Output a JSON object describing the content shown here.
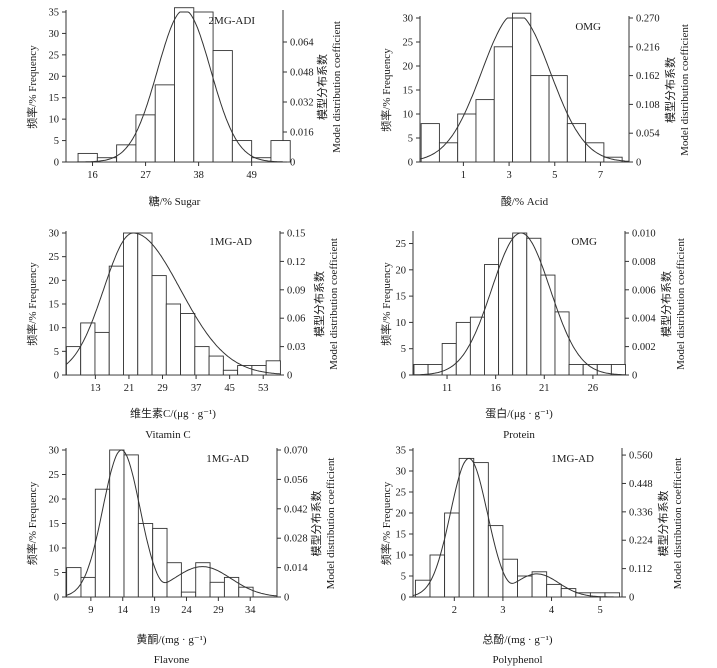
{
  "chart_data": [
    {
      "type": "bar",
      "subtype": "histogram-with-fitted-curve",
      "annotation": "2MG-ADI",
      "xlabel": "糖/%  Sugar",
      "ylabel": "频率/%  Frequency",
      "y2label_cn": "模型分布系数",
      "y2label_en": "Model distribution coefficient",
      "xlim": [
        10.5,
        55.5
      ],
      "ylim": [
        0,
        35
      ],
      "y2lim": [
        0,
        0.08
      ],
      "xticks": [
        16,
        27,
        38,
        49
      ],
      "yticks": [
        0,
        5,
        10,
        15,
        20,
        25,
        30,
        35
      ],
      "y2ticks": [
        "0",
        "0.016",
        "0.032",
        "0.048",
        "0.064"
      ],
      "bin_width": 4,
      "bin_starts": [
        13,
        17,
        21,
        25,
        29,
        33,
        37,
        41,
        45,
        49,
        53
      ],
      "values": [
        2,
        1,
        4,
        11,
        18,
        36,
        35,
        26,
        5,
        1,
        5
      ],
      "curve": {
        "peak": 35.5,
        "mean": 35,
        "sd": 5.5
      },
      "grid": false,
      "legend": "none"
    },
    {
      "type": "bar",
      "subtype": "histogram-with-fitted-curve",
      "annotation": "OMG",
      "xlabel": "酸/%  Acid",
      "ylabel": "频率/%  Frequency",
      "y2label_cn": "模型分布系数",
      "y2label_en": "Model distribution coefficient",
      "xlim": [
        -0.9,
        8.25
      ],
      "ylim": [
        0,
        30
      ],
      "y2lim": [
        0,
        0.27
      ],
      "xticks": [
        1,
        3,
        5,
        7
      ],
      "yticks": [
        0,
        5,
        10,
        15,
        20,
        25,
        30
      ],
      "y2ticks": [
        "0",
        "0.054",
        "0.108",
        "0.162",
        "0.216",
        "0.270"
      ],
      "bin_width": 0.8,
      "bin_starts": [
        -0.85,
        -0.05,
        0.75,
        1.55,
        2.35,
        3.15,
        3.95,
        4.75,
        5.55,
        6.35,
        7.15
      ],
      "values": [
        8,
        4,
        10,
        13,
        24,
        31,
        18,
        18,
        8,
        4,
        1
      ],
      "curve": {
        "peak": 31,
        "mean": 3.3,
        "sd": 1.5
      },
      "grid": false,
      "legend": "none"
    },
    {
      "type": "bar",
      "subtype": "histogram-with-fitted-curve",
      "annotation": "1MG-AD",
      "xlabel": "维生素C/(μg · g⁻¹)",
      "xlabel_en": "Vitamin C",
      "ylabel": "频率/%  Frequency",
      "y2label_cn": "模型分布系数",
      "y2label_en": "Model distribution coefficient",
      "xlim": [
        6,
        57
      ],
      "ylim": [
        0,
        30
      ],
      "y2lim": [
        0,
        0.15
      ],
      "xticks": [
        13,
        21,
        29,
        37,
        45,
        53
      ],
      "yticks": [
        0,
        5,
        10,
        15,
        20,
        25,
        30
      ],
      "y2ticks": [
        "0",
        "0.03",
        "0.06",
        "0.09",
        "0.12",
        "0.15"
      ],
      "bin_width": 3.4,
      "bin_starts": [
        6.1,
        9.5,
        12.9,
        16.3,
        19.7,
        23.1,
        26.5,
        29.9,
        33.3,
        36.7,
        40.1,
        43.5,
        46.9,
        50.3,
        53.7
      ],
      "values": [
        6,
        11,
        9,
        23,
        30,
        30,
        21,
        15,
        13,
        6,
        4,
        1,
        2,
        2,
        3
      ],
      "curve": {
        "peak": 30,
        "mean": 22,
        "sd": 7,
        "skew": 1.6
      },
      "grid": false,
      "legend": "none"
    },
    {
      "type": "bar",
      "subtype": "histogram-with-fitted-curve",
      "annotation": "OMG",
      "xlabel": "蛋白/(μg · g⁻¹)",
      "xlabel_en": "Protein",
      "ylabel": "频率/%  Frequency",
      "y2label_cn": "模型分布系数",
      "y2label_en": "Model distribution coefficient",
      "xlim": [
        7.5,
        29.3
      ],
      "ylim": [
        0,
        27
      ],
      "y2lim": [
        0,
        0.01
      ],
      "xticks": [
        11,
        16,
        21,
        26
      ],
      "yticks": [
        0,
        5,
        10,
        15,
        20,
        25
      ],
      "y2ticks": [
        "0",
        "0.002",
        "0.004",
        "0.006",
        "0.008",
        "0.010"
      ],
      "bin_width": 1.45,
      "bin_starts": [
        7.6,
        9.05,
        10.5,
        11.95,
        13.4,
        14.85,
        16.3,
        17.75,
        19.2,
        20.65,
        22.1,
        23.55,
        25.0,
        26.45,
        27.9
      ],
      "values": [
        2,
        2,
        6,
        10,
        11,
        21,
        26,
        27,
        26,
        19,
        12,
        2,
        2,
        2,
        2
      ],
      "curve": {
        "peak": 27,
        "mean": 18.6,
        "sd": 3.0
      },
      "grid": false,
      "legend": "none"
    },
    {
      "type": "bar",
      "subtype": "histogram-with-fitted-curve",
      "annotation": "1MG-AD",
      "xlabel": "黄酮/(mg · g⁻¹)",
      "xlabel_en": "Flavone",
      "ylabel": "频率/%  Frequency",
      "y2label_cn": "模型分布系数",
      "y2label_en": "Model distribution coefficient",
      "xlim": [
        5.1,
        38.2
      ],
      "ylim": [
        0,
        30
      ],
      "y2lim": [
        0,
        0.07
      ],
      "xticks": [
        9,
        14,
        19,
        24,
        29,
        34
      ],
      "yticks": [
        0,
        5,
        10,
        15,
        20,
        25,
        30
      ],
      "y2ticks": [
        "0",
        "0.014",
        "0.028",
        "0.042",
        "0.056",
        "0.070"
      ],
      "bin_width": 2.25,
      "bin_starts": [
        5.2,
        7.45,
        9.7,
        11.95,
        14.2,
        16.45,
        18.7,
        20.95,
        23.2,
        25.45,
        27.7,
        29.95,
        32.2,
        34.45,
        36.7
      ],
      "values": [
        6,
        4,
        22,
        30,
        29,
        15,
        14,
        7,
        1,
        7,
        3,
        4,
        2,
        0,
        0
      ],
      "curve": {
        "peak": 30,
        "mean": 13.8,
        "sd": 2.9,
        "secondary_peak": 6.2,
        "secondary_mean": 26.5,
        "secondary_sd": 4.5
      },
      "grid": false,
      "legend": "none"
    },
    {
      "type": "bar",
      "subtype": "histogram-with-fitted-curve",
      "annotation": "1MG-AD",
      "xlabel": "总酚/(mg · g⁻¹)",
      "xlabel_en": "Polyphenol",
      "ylabel": "频率/%  Frequency",
      "y2label_cn": "模型分布系数",
      "y2label_en": "Model distribution coefficient",
      "xlim": [
        1.15,
        5.45
      ],
      "ylim": [
        0,
        35
      ],
      "y2lim": [
        0,
        0.58
      ],
      "xticks": [
        2,
        3,
        4,
        5
      ],
      "yticks": [
        0,
        5,
        10,
        15,
        20,
        25,
        30,
        35
      ],
      "y2ticks": [
        "0",
        "0.112",
        "0.224",
        "0.336",
        "0.448",
        "0.560"
      ],
      "bin_width": 0.3,
      "bin_starts": [
        1.2,
        1.5,
        1.8,
        2.1,
        2.4,
        2.7,
        3.0,
        3.3,
        3.6,
        3.9,
        4.2,
        4.5,
        4.8,
        5.1
      ],
      "values": [
        4,
        10,
        20,
        33,
        32,
        17,
        9,
        5,
        6,
        3,
        2,
        1,
        1,
        1
      ],
      "curve": {
        "peak": 33,
        "mean": 2.3,
        "sd": 0.38,
        "secondary_peak": 5.5,
        "secondary_mean": 3.7,
        "secondary_sd": 0.45
      },
      "grid": false,
      "legend": "none"
    }
  ]
}
